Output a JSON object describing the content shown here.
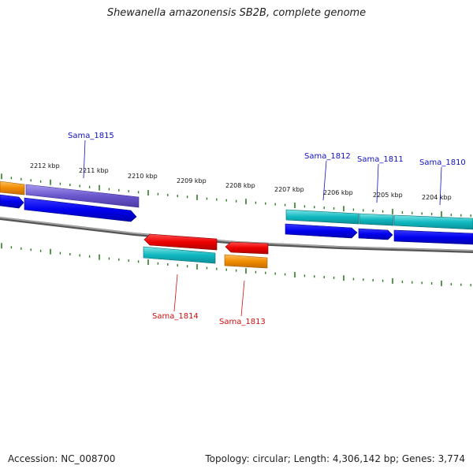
{
  "title": "Shewanella amazonensis SB2B, complete genome",
  "footer": {
    "accession": "Accession: NC_008700",
    "summary": "Topology: circular; Length: 4,306,142 bp; Genes: 3,774"
  },
  "colors": {
    "backbone": "#808080",
    "tick": "#2e7d22",
    "forward_label": "#1010c0",
    "reverse_label": "#d01010",
    "cds_forward": "#0000ee",
    "cds_reverse": "#ee0000",
    "feature_cyan": "#20c0c0",
    "feature_purple": "#7060d0",
    "feature_orange": "#f08c00"
  },
  "scale": {
    "labels": [
      "2212 kbp",
      "2211 kbp",
      "2210 kbp",
      "2209 kbp",
      "2208 kbp",
      "2207 kbp",
      "2206 kbp",
      "2205 kbp",
      "2204 kbp"
    ]
  },
  "genes": {
    "top": [
      {
        "name": "Sama_1815"
      },
      {
        "name": "Sama_1812"
      },
      {
        "name": "Sama_1811"
      },
      {
        "name": "Sama_1810"
      }
    ],
    "bottom": [
      {
        "name": "Sama_1814"
      },
      {
        "name": "Sama_1813"
      }
    ]
  }
}
